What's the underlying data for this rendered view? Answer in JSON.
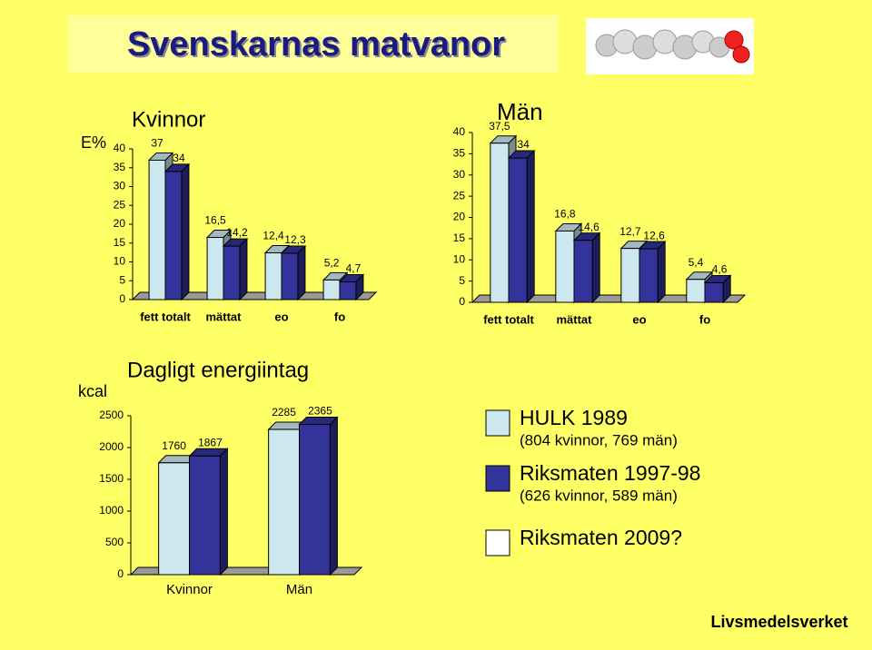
{
  "title": "Svenskarnas matvanor",
  "chart_data": [
    {
      "type": "bar",
      "title": "Kvinnor",
      "y_label": "E%",
      "categories": [
        "fett totalt",
        "mättat",
        "eo",
        "fo"
      ],
      "series": [
        {
          "color": "#cce8ee",
          "values": [
            37,
            16.5,
            12.4,
            5.2
          ],
          "value_labels": [
            "37",
            "16,5",
            "12,4",
            "5,2"
          ]
        },
        {
          "color": "#333399",
          "values": [
            34,
            14.2,
            12.3,
            4.7
          ],
          "value_labels": [
            "34",
            "14,2",
            "12,3",
            "4,7"
          ]
        }
      ],
      "ylim": [
        0,
        40
      ],
      "yticks": [
        0,
        5,
        10,
        15,
        20,
        25,
        30,
        35,
        40
      ]
    },
    {
      "type": "bar",
      "title": "Män",
      "categories": [
        "fett totalt",
        "mättat",
        "eo",
        "fo"
      ],
      "series": [
        {
          "color": "#cce8ee",
          "values": [
            37.5,
            16.8,
            12.7,
            5.4
          ],
          "value_labels": [
            "37,5",
            "16,8",
            "12,7",
            "5,4"
          ]
        },
        {
          "color": "#333399",
          "values": [
            34,
            14.6,
            12.6,
            4.6
          ],
          "value_labels": [
            "34",
            "14,6",
            "12,6",
            "4,6"
          ]
        }
      ],
      "ylim": [
        0,
        40
      ],
      "yticks": [
        0,
        5,
        10,
        15,
        20,
        25,
        30,
        35,
        40
      ]
    },
    {
      "type": "bar",
      "title": "Dagligt energiintag",
      "y_label": "kcal",
      "categories": [
        "Kvinnor",
        "Män"
      ],
      "series": [
        {
          "color": "#cce8ee",
          "values": [
            1760,
            2285
          ]
        },
        {
          "color": "#333399",
          "values": [
            1867,
            2365
          ]
        }
      ],
      "ylim": [
        0,
        2500
      ],
      "yticks": [
        0,
        500,
        1000,
        1500,
        2000,
        2500
      ]
    }
  ],
  "legend": [
    {
      "name": "HULK 1989",
      "note": "(804 kvinnor, 769 män)",
      "color": "#cce8ee"
    },
    {
      "name": "Riksmaten 1997-98",
      "note": "(626 kvinnor, 589 män)",
      "color": "#333399"
    },
    {
      "name": "Riksmaten 2009?",
      "color": "#ffffff"
    }
  ],
  "footer": "Livsmedelsverket"
}
